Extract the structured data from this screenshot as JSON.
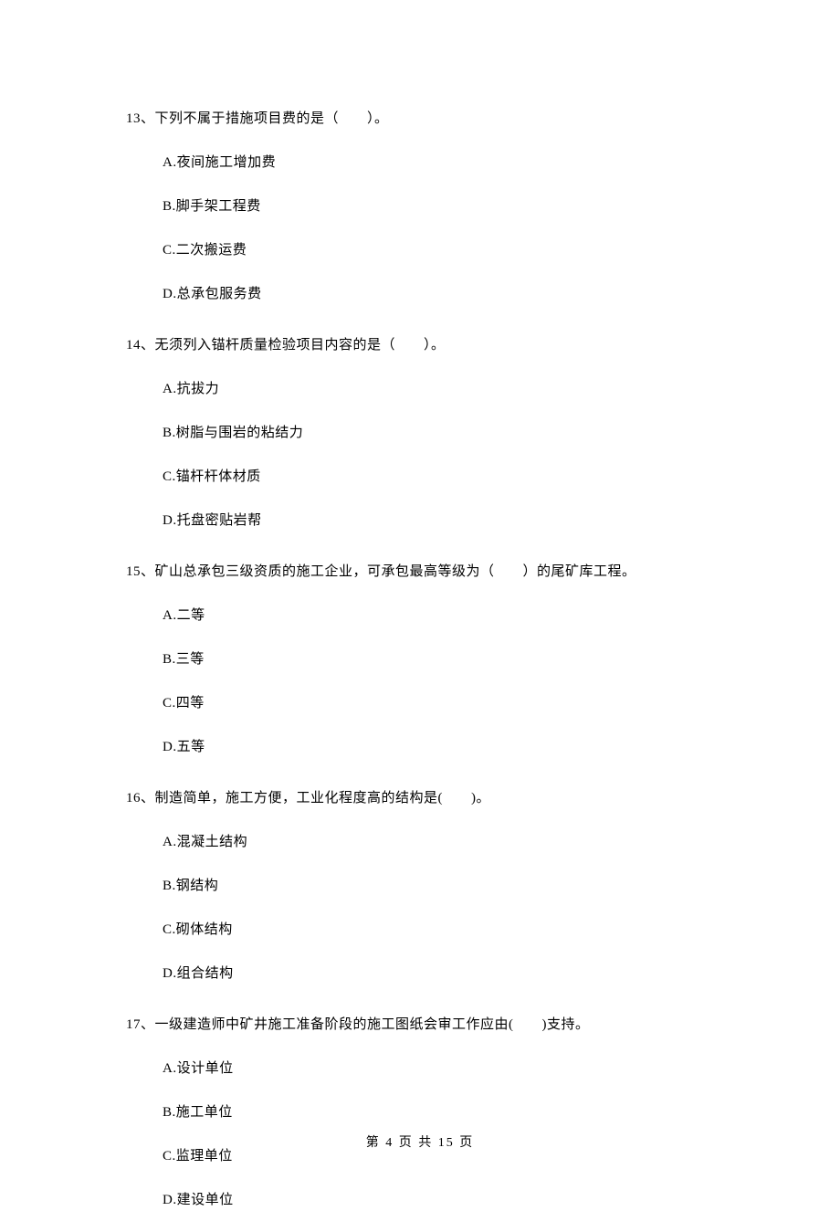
{
  "colors": {
    "background": "#ffffff",
    "text": "#000000"
  },
  "typography": {
    "fontFamily": "SimSun",
    "questionFontSize": 15,
    "optionFontSize": 15,
    "footerFontSize": 14
  },
  "questions": [
    {
      "number": "13",
      "text": "13、下列不属于措施项目费的是（　　）。",
      "options": {
        "A": "A.夜间施工增加费",
        "B": "B.脚手架工程费",
        "C": "C.二次搬运费",
        "D": "D.总承包服务费"
      }
    },
    {
      "number": "14",
      "text": "14、无须列入锚杆质量检验项目内容的是（　　）。",
      "options": {
        "A": "A.抗拔力",
        "B": "B.树脂与围岩的粘结力",
        "C": "C.锚杆杆体材质",
        "D": "D.托盘密贴岩帮"
      }
    },
    {
      "number": "15",
      "text": "15、矿山总承包三级资质的施工企业，可承包最高等级为（　　）的尾矿库工程。",
      "options": {
        "A": "A.二等",
        "B": "B.三等",
        "C": "C.四等",
        "D": "D.五等"
      }
    },
    {
      "number": "16",
      "text": "16、制造简单，施工方便，工业化程度高的结构是(　　)。",
      "options": {
        "A": "A.混凝土结构",
        "B": "B.钢结构",
        "C": "C.砌体结构",
        "D": "D.组合结构"
      }
    },
    {
      "number": "17",
      "text": "17、一级建造师中矿井施工准备阶段的施工图纸会审工作应由(　　)支持。",
      "options": {
        "A": "A.设计单位",
        "B": "B.施工单位",
        "C": "C.监理单位",
        "D": "D.建设单位"
      }
    }
  ],
  "footer": {
    "text": "第 4 页 共 15 页"
  }
}
